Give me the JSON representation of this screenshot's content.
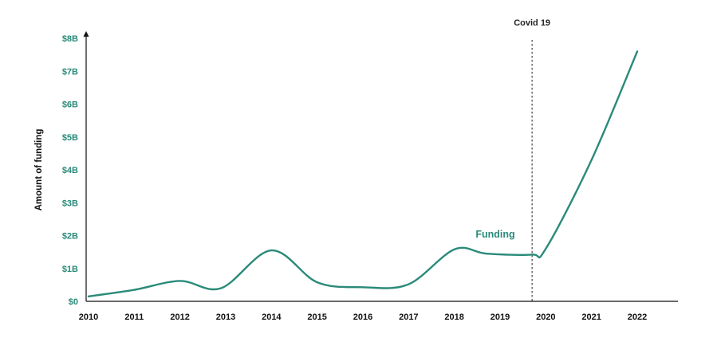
{
  "chart_data": {
    "type": "line",
    "ylabel": "Amount of funding",
    "x": [
      2010,
      2011,
      2012,
      2013,
      2014,
      2015,
      2016,
      2017,
      2018,
      2019,
      2020,
      2021,
      2022
    ],
    "x_tick_labels": [
      "2010",
      "2011",
      "2012",
      "2013",
      "2014",
      "2015",
      "2016",
      "2017",
      "2018",
      "2019",
      "2020",
      "2021",
      "2022"
    ],
    "y_ticks": [
      0,
      1,
      2,
      3,
      4,
      5,
      6,
      7,
      8
    ],
    "y_tick_labels": [
      "$0",
      "$1B",
      "$2B",
      "$3B",
      "$4B",
      "$5B",
      "$6B",
      "$7B",
      "$8B"
    ],
    "ylim": [
      0,
      8
    ],
    "grid": false,
    "series": [
      {
        "name": "Funding",
        "color": "#2a8a7a",
        "points": [
          [
            2010,
            0.15
          ],
          [
            2011,
            0.35
          ],
          [
            2012,
            0.62
          ],
          [
            2012.9,
            0.4
          ],
          [
            2014,
            1.55
          ],
          [
            2015,
            0.58
          ],
          [
            2016,
            0.43
          ],
          [
            2017,
            0.52
          ],
          [
            2018,
            1.58
          ],
          [
            2018.7,
            1.45
          ],
          [
            2019.7,
            1.42
          ],
          [
            2020,
            1.6
          ],
          [
            2021,
            4.3
          ],
          [
            2022,
            7.6
          ]
        ]
      }
    ],
    "annotations": [
      {
        "text": "Covid 19",
        "x": 2019.7,
        "style": "dashed-vertical-line"
      }
    ],
    "legend": "inline label near the line"
  }
}
